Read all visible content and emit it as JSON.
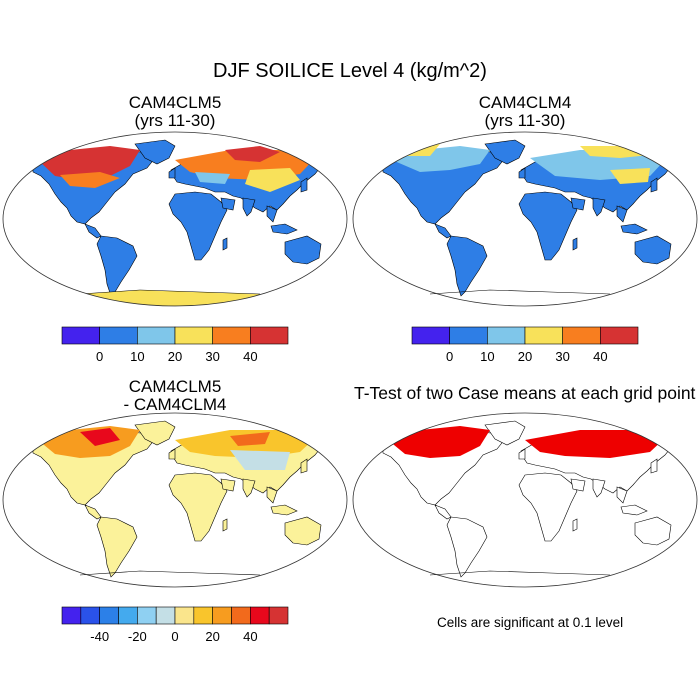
{
  "figure_title": "DJF SOILICE Level 4 (kg/m^2)",
  "panels": [
    {
      "title_line1": "CAM4CLM5",
      "title_line2": "(yrs 11-30)"
    },
    {
      "title_line1": "CAM4CLM4",
      "title_line2": "(yrs 11-30)"
    },
    {
      "title_line1": "CAM4CLM5",
      "title_line2": "- CAM4CLM4"
    },
    {
      "title_line1": "T-Test of two Case means at each grid point",
      "title_line2": ""
    }
  ],
  "colorbar_abs": {
    "colors": [
      "#4422ee",
      "#2e7ee6",
      "#7fc6ea",
      "#f8e15a",
      "#f87e1f",
      "#d63333"
    ],
    "tick_labels": [
      "0",
      "10",
      "20",
      "30",
      "40"
    ]
  },
  "colorbar_diff": {
    "colors": [
      "#4422ee",
      "#2a52ea",
      "#2c80e8",
      "#44aaee",
      "#8fd0f2",
      "#c4dfe6",
      "#fae58c",
      "#f9c52c",
      "#f79c1f",
      "#f26a1c",
      "#e8081c",
      "#d63333"
    ],
    "tick_labels": [
      "-40",
      "-20",
      "0",
      "20",
      "40"
    ]
  },
  "significance_note": "Cells are significant at 0.1 level",
  "colors": {
    "ocean": "#ffffff",
    "land_abs_main": "#2e7ee6",
    "land_diff_main": "#fbf29a",
    "significant": "#ee0000"
  }
}
